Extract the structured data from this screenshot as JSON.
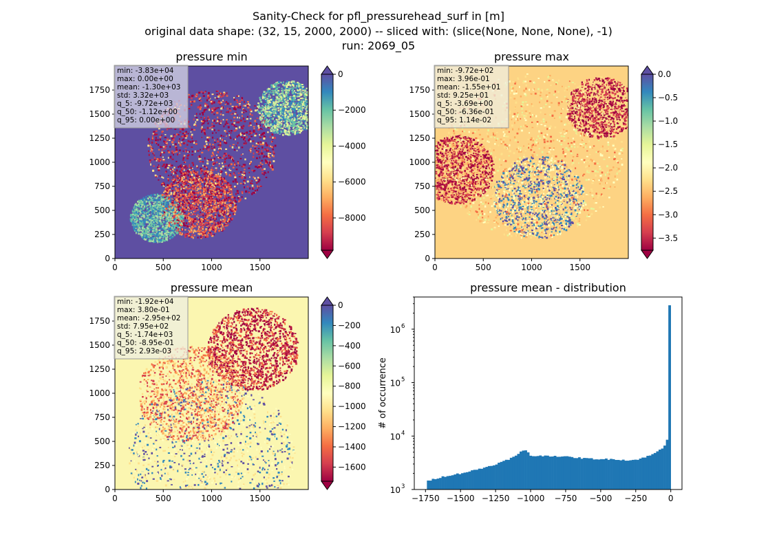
{
  "figure": {
    "title_lines": [
      "Sanity-Check for pfl_pressurehead_surf in [m]",
      "original data shape: (32, 15, 2000, 2000) -- sliced with: (slice(None, None, None), -1)",
      "run: 2069_05"
    ]
  },
  "colors": {
    "hist_bar": "#1f77b4",
    "stats_box": "#d8d8e6",
    "spectral_low": "#9e0142",
    "spectral_high": "#5e4fa2"
  },
  "chart_data": [
    {
      "type": "heatmap",
      "title": "pressure min",
      "x_ticks": [
        0,
        500,
        1000,
        1500
      ],
      "y_ticks": [
        0,
        250,
        500,
        750,
        1000,
        1250,
        1500,
        1750
      ],
      "xlim": [
        0,
        2000
      ],
      "ylim": [
        0,
        2000
      ],
      "colormap": "Spectral",
      "colorbar": {
        "min": -9800,
        "max": 0,
        "ticks": [
          0,
          -2000,
          -4000,
          -6000,
          -8000
        ],
        "tick_labels": [
          "0",
          "−2000",
          "−4000",
          "−6000",
          "−8000"
        ],
        "extend": "both"
      },
      "stats": [
        "min: -3.83e+04",
        "max: 0.00e+00",
        "mean: -1.30e+03",
        "std: 3.32e+03",
        "q_5: -9.72e+03",
        "q_50: -1.12e+00",
        "q_95: 0.00e+00"
      ]
    },
    {
      "type": "heatmap",
      "title": "pressure max",
      "x_ticks": [
        0,
        500,
        1000,
        1500
      ],
      "y_ticks": [
        0,
        250,
        500,
        750,
        1000,
        1250,
        1500,
        1750
      ],
      "xlim": [
        0,
        2000
      ],
      "ylim": [
        0,
        2000
      ],
      "colormap": "Spectral",
      "colorbar": {
        "min": -3.76,
        "max": 0.0,
        "ticks": [
          0.0,
          -0.5,
          -1.0,
          -1.5,
          -2.0,
          -2.5,
          -3.0,
          -3.5
        ],
        "tick_labels": [
          "0.0",
          "−0.5",
          "−1.0",
          "−1.5",
          "−2.0",
          "−2.5",
          "−3.0",
          "−3.5"
        ],
        "extend": "both"
      },
      "stats": [
        "min: -9.72e+02",
        "max: 3.96e-01",
        "mean: -1.55e+01",
        "std: 9.25e+01",
        "q_5: -3.69e+00",
        "q_50: -6.36e-01",
        "q_95: 1.14e-02"
      ]
    },
    {
      "type": "heatmap",
      "title": "pressure mean",
      "x_ticks": [
        0,
        500,
        1000,
        1500
      ],
      "y_ticks": [
        0,
        250,
        500,
        750,
        1000,
        1250,
        1500,
        1750
      ],
      "xlim": [
        0,
        2000
      ],
      "ylim": [
        0,
        2000
      ],
      "colormap": "Spectral",
      "colorbar": {
        "min": -1740,
        "max": 0,
        "ticks": [
          0,
          -200,
          -400,
          -600,
          -800,
          -1000,
          -1200,
          -1400,
          -1600
        ],
        "tick_labels": [
          "0",
          "−200",
          "−400",
          "−600",
          "−800",
          "−1000",
          "−1200",
          "−1400",
          "−1600"
        ],
        "extend": "both"
      },
      "stats": [
        "min: -1.92e+04",
        "max: 3.80e-01",
        "mean: -2.95e+02",
        "std: 7.95e+02",
        "q_5: -1.74e+03",
        "q_50: -8.95e-01",
        "q_95: 2.93e-03"
      ]
    },
    {
      "type": "bar",
      "title": "pressure mean - distribution",
      "ylabel": "# of occurrence",
      "y_scale": "log",
      "xlim": [
        -1830,
        80
      ],
      "ylim": [
        1000,
        4000000
      ],
      "x_ticks": [
        -1750,
        -1500,
        -1250,
        -1000,
        -750,
        -500,
        -250,
        0
      ],
      "x_tick_labels": [
        "−1750",
        "−1500",
        "−1250",
        "−1000",
        "−750",
        "−500",
        "−250",
        "0"
      ],
      "y_ticks": [
        1000,
        10000,
        100000,
        1000000
      ],
      "y_tick_bases": [
        "10",
        "10",
        "10",
        "10"
      ],
      "y_tick_exponents": [
        "3",
        "4",
        "5",
        "6"
      ],
      "bin_range": [
        -1740,
        0
      ],
      "bin_count": 100,
      "profile_anchors": {
        "x": [
          -1740,
          -1700,
          -1600,
          -1500,
          -1400,
          -1300,
          -1200,
          -1100,
          -1060,
          -1040,
          -1020,
          -1000,
          -950,
          -900,
          -800,
          -700,
          -600,
          -500,
          -400,
          -300,
          -250,
          -200,
          -150,
          -100,
          -60,
          -40,
          -30,
          -20,
          -15,
          -10,
          -5,
          0
        ],
        "y": [
          1400,
          1550,
          1800,
          2000,
          2300,
          2700,
          3300,
          4300,
          5300,
          5500,
          5100,
          4300,
          4200,
          4300,
          4200,
          4000,
          3800,
          3700,
          3700,
          3500,
          3600,
          3900,
          4300,
          5000,
          6000,
          7000,
          8000,
          10000,
          14000,
          18000,
          30000,
          2800000
        ]
      }
    }
  ]
}
